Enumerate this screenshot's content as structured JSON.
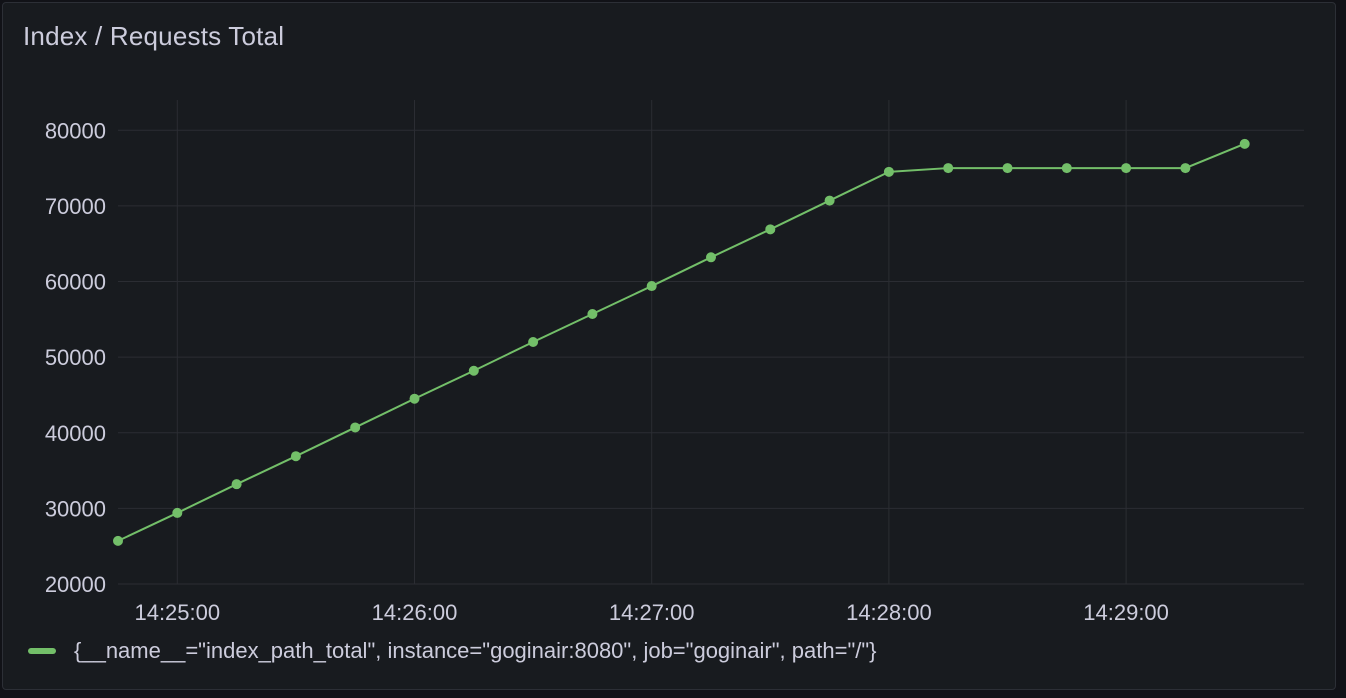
{
  "panel": {
    "title": "Index / Requests Total"
  },
  "legend": {
    "label": "{__name__=\"index_path_total\", instance=\"goginair:8080\", job=\"goginair\", path=\"/\"}"
  },
  "colors": {
    "series": "#73bf69",
    "grid": "#2b2d33",
    "text": "#ccccdc",
    "background": "#181b1f"
  },
  "chart_data": {
    "type": "line",
    "title": "Index / Requests Total",
    "xlabel": "",
    "ylabel": "",
    "ylim": [
      20000,
      84000
    ],
    "xlim": [
      "14:24:45",
      "14:29:45"
    ],
    "y_ticks": [
      20000,
      30000,
      40000,
      50000,
      60000,
      70000,
      80000
    ],
    "x_ticks": [
      "14:25:00",
      "14:26:00",
      "14:27:00",
      "14:28:00",
      "14:29:00"
    ],
    "grid": true,
    "legend_position": "bottom-left",
    "series": [
      {
        "name": "{__name__=\"index_path_total\", instance=\"goginair:8080\", job=\"goginair\", path=\"/\"}",
        "points": [
          [
            "14:24:45",
            25700
          ],
          [
            "14:25:00",
            29400
          ],
          [
            "14:25:15",
            33200
          ],
          [
            "14:25:30",
            36900
          ],
          [
            "14:25:45",
            40700
          ],
          [
            "14:26:00",
            44500
          ],
          [
            "14:26:15",
            48200
          ],
          [
            "14:26:30",
            52000
          ],
          [
            "14:26:45",
            55700
          ],
          [
            "14:27:00",
            59400
          ],
          [
            "14:27:15",
            63200
          ],
          [
            "14:27:30",
            66900
          ],
          [
            "14:27:45",
            70700
          ],
          [
            "14:28:00",
            74500
          ],
          [
            "14:28:15",
            75000
          ],
          [
            "14:28:30",
            75000
          ],
          [
            "14:28:45",
            75000
          ],
          [
            "14:29:00",
            75000
          ],
          [
            "14:29:15",
            75000
          ],
          [
            "14:29:30",
            78200
          ]
        ]
      }
    ]
  }
}
